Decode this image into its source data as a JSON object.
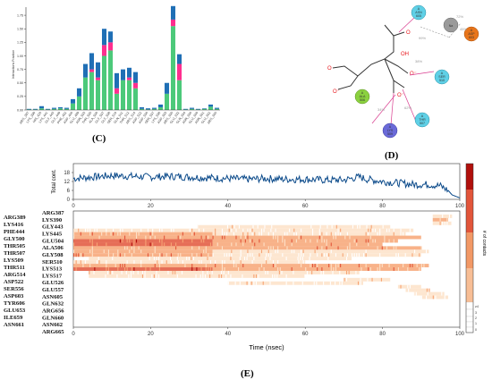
{
  "panels": {
    "c": {
      "label": "(C)",
      "ylabel": "Interactions Fraction",
      "yticks": [
        "0.00",
        "0.25",
        "0.50",
        "0.75",
        "1.00",
        "1.25",
        "1.50",
        "1.75"
      ],
      "xticks": [
        "ARG_387",
        "LYS_390",
        "HIS_426",
        "LYS_441",
        "GLY_443",
        "GLY_449",
        "PHE_452",
        "ASP_466",
        "GLU_489",
        "ASN_503",
        "THR_505",
        "ALA_506",
        "GLY_507",
        "GLY_508",
        "SER_510",
        "GLN_511",
        "THR_512",
        "ARG_514",
        "ASP_522",
        "ASP_556",
        "SER_557",
        "LYS_558",
        "ASP_603",
        "ARG_605",
        "GLU_632",
        "GLN_654",
        "ASN_656",
        "GLU_660",
        "ASN_661",
        "GLU_662",
        "ARG_665"
      ]
    },
    "d": {
      "label": "(D)",
      "residues": [
        {
          "chain": "A",
          "name": "ASN",
          "num": "605",
          "color": "#5fd0e6"
        },
        {
          "chain": "",
          "name": "Na",
          "num": "",
          "color": "#9a9a9a"
        },
        {
          "chain": "A",
          "name": "ASP",
          "num": "603",
          "color": "#e8751a"
        },
        {
          "chain": "A",
          "name": "SER",
          "num": "510",
          "color": "#5fd0e6"
        },
        {
          "chain": "A",
          "name": "THR",
          "num": "507",
          "color": "#5fd0e6"
        },
        {
          "chain": "A",
          "name": "LYS",
          "num": "509",
          "color": "#6a6ad8"
        },
        {
          "chain": "A",
          "name": "ALA",
          "num": "506",
          "color": "#8bd13f"
        }
      ],
      "percent_labels": [
        "72%",
        "45%",
        "99%",
        "38%",
        "62%",
        "34%"
      ]
    },
    "e": {
      "label": "(E)",
      "top_ylabel": "Total cont.",
      "top_yticks": [
        "0",
        "6",
        "12",
        "18"
      ],
      "xlabel": "Time (nsec)",
      "xticks": [
        "0",
        "20",
        "40",
        "60",
        "80",
        "100"
      ],
      "residues_left": [
        "ARG389",
        "LYS416",
        "PHE444",
        "GLY500",
        "THR505",
        "THR507",
        "LYS509",
        "THR511",
        "ARG514",
        "ASP522",
        "SER556",
        "ASP603",
        "TYR606",
        "GLU653",
        "ILE659",
        "ASN661"
      ],
      "residues_right": [
        "ARG387",
        "LYS390",
        "GLY443",
        "LYS445",
        "GLU504",
        "ALA506",
        "GLY508",
        "SER510",
        "LYS513",
        "LYS517",
        "GLU526",
        "GLU557",
        "ASN605",
        "GLN632",
        "ARG656",
        "GLN660",
        "ASN662",
        "ARG665"
      ],
      "colorbar_label": "# of contacts",
      "colorbar_ticks": [
        "0",
        "1",
        "2",
        "3",
        "≥4"
      ],
      "colors": [
        "#ffffff",
        "#fde2c8",
        "#f7a474",
        "#e2553a",
        "#b1100c"
      ]
    }
  },
  "chart_data": [
    {
      "type": "bar",
      "stacked": true,
      "title": "",
      "ylabel": "Interactions Fraction",
      "ylim": [
        0,
        1.9
      ],
      "categories": [
        "ARG_387",
        "LYS_390",
        "HIS_426",
        "LYS_441",
        "GLY_443",
        "GLY_449",
        "PHE_452",
        "ASP_466",
        "GLU_489",
        "ASN_503",
        "THR_505",
        "ALA_506",
        "GLY_507",
        "GLY_508",
        "SER_510",
        "GLN_511",
        "THR_512",
        "ARG_514",
        "ASP_522",
        "ASP_556",
        "SER_557",
        "LYS_558",
        "ASP_603",
        "ARG_605",
        "GLU_632",
        "GLN_654",
        "ASN_656",
        "GLU_660",
        "ASN_661",
        "GLU_662",
        "ARG_665"
      ],
      "series": [
        {
          "color": "#4cc97a",
          "values": [
            0.01,
            0.01,
            0.03,
            0.01,
            0.02,
            0.03,
            0.02,
            0.12,
            0.25,
            0.6,
            0.7,
            0.55,
            1.0,
            1.1,
            0.3,
            0.55,
            0.55,
            0.4,
            0.02,
            0.01,
            0.02,
            0.05,
            0.3,
            1.55,
            0.55,
            0.01,
            0.02,
            0.01,
            0.02,
            0.06,
            0.02
          ]
        },
        {
          "color": "#ff2e8f",
          "values": [
            0,
            0,
            0,
            0,
            0,
            0,
            0,
            0,
            0,
            0,
            0.05,
            0.05,
            0.2,
            0.15,
            0.1,
            0,
            0.05,
            0.1,
            0,
            0,
            0,
            0,
            0,
            0.12,
            0.3,
            0,
            0,
            0,
            0,
            0,
            0
          ]
        },
        {
          "color": "#1f6fb5",
          "values": [
            0.01,
            0.01,
            0.04,
            0.01,
            0.02,
            0.02,
            0.02,
            0.08,
            0.15,
            0.25,
            0.3,
            0.28,
            0.3,
            0.2,
            0.28,
            0.2,
            0.18,
            0.2,
            0.03,
            0.02,
            0.02,
            0.05,
            0.2,
            0.25,
            0.18,
            0.01,
            0.02,
            0.01,
            0.01,
            0.04,
            0.02
          ]
        }
      ]
    },
    {
      "type": "line",
      "title": "",
      "ylabel": "Total cont.",
      "xlabel": "Time (nsec)",
      "xlim": [
        0,
        100
      ],
      "ylim": [
        0,
        24
      ],
      "series": [
        {
          "color": "#0b4a8a",
          "points": [
            [
              0,
              14
            ],
            [
              5,
              15
            ],
            [
              10,
              16
            ],
            [
              15,
              15.5
            ],
            [
              20,
              15
            ],
            [
              25,
              15.5
            ],
            [
              30,
              15
            ],
            [
              35,
              14.5
            ],
            [
              40,
              14
            ],
            [
              45,
              13.5
            ],
            [
              50,
              14
            ],
            [
              55,
              13.5
            ],
            [
              60,
              13.5
            ],
            [
              65,
              13
            ],
            [
              70,
              13
            ],
            [
              74,
              15
            ],
            [
              76,
              13.5
            ],
            [
              80,
              12
            ],
            [
              84,
              11
            ],
            [
              88,
              10
            ],
            [
              92,
              10
            ],
            [
              95,
              9
            ],
            [
              97,
              6
            ],
            [
              98,
              3
            ],
            [
              100,
              1
            ]
          ]
        }
      ]
    },
    {
      "type": "heatmap",
      "title": "",
      "xlabel": "Time (nsec)",
      "xlim": [
        0,
        100
      ],
      "rows_top_to_bottom": [
        "ARG389/ARG387",
        "LYS390",
        "LYS416",
        "GLY443",
        "PHE444",
        "LYS445",
        "GLY500",
        "GLU504",
        "THR505",
        "ALA506",
        "THR507",
        "GLY508",
        "LYS509",
        "SER510",
        "THR511",
        "LYS513",
        "ARG514",
        "LYS517",
        "ASP522",
        "GLU526",
        "SER556",
        "GLU557",
        "ASP603",
        "ASN605",
        "TYR606",
        "GLN632",
        "GLU653",
        "ARG656",
        "ILE659",
        "GLN660",
        "ASN661",
        "ASN662",
        "ARG665"
      ],
      "segments": [
        {
          "row": 1,
          "start": 93,
          "end": 98,
          "level": 1
        },
        {
          "row": 2,
          "start": 93,
          "end": 97,
          "level": 2
        },
        {
          "row": 3,
          "start": 93,
          "end": 98,
          "level": 1
        },
        {
          "row": 4,
          "start": 32,
          "end": 82,
          "level": 1
        },
        {
          "row": 5,
          "start": 0,
          "end": 88,
          "level": 1
        },
        {
          "row": 6,
          "start": 0,
          "end": 36,
          "level": 2
        },
        {
          "row": 6,
          "start": 36,
          "end": 86,
          "level": 1
        },
        {
          "row": 7,
          "start": 0,
          "end": 90,
          "level": 2
        },
        {
          "row": 8,
          "start": 0,
          "end": 36,
          "level": 3
        },
        {
          "row": 8,
          "start": 36,
          "end": 84,
          "level": 2
        },
        {
          "row": 9,
          "start": 0,
          "end": 36,
          "level": 3
        },
        {
          "row": 9,
          "start": 36,
          "end": 80,
          "level": 2
        },
        {
          "row": 10,
          "start": 0,
          "end": 90,
          "level": 2
        },
        {
          "row": 11,
          "start": 0,
          "end": 36,
          "level": 2
        },
        {
          "row": 11,
          "start": 36,
          "end": 92,
          "level": 1
        },
        {
          "row": 12,
          "start": 0,
          "end": 36,
          "level": 2
        },
        {
          "row": 12,
          "start": 36,
          "end": 90,
          "level": 1
        },
        {
          "row": 13,
          "start": 4,
          "end": 72,
          "level": 1
        },
        {
          "row": 14,
          "start": 0,
          "end": 60,
          "level": 1
        },
        {
          "row": 15,
          "start": 0,
          "end": 92,
          "level": 2
        },
        {
          "row": 16,
          "start": 0,
          "end": 36,
          "level": 3
        },
        {
          "row": 16,
          "start": 36,
          "end": 90,
          "level": 2
        },
        {
          "row": 17,
          "start": 4,
          "end": 74,
          "level": 1
        },
        {
          "row": 18,
          "start": 4,
          "end": 60,
          "level": 1
        },
        {
          "row": 19,
          "start": 70,
          "end": 82,
          "level": 1
        },
        {
          "row": 20,
          "start": 40,
          "end": 75,
          "level": 1
        },
        {
          "row": 21,
          "start": 84,
          "end": 90,
          "level": 1
        },
        {
          "row": 22,
          "start": 86,
          "end": 92,
          "level": 1
        },
        {
          "row": 23,
          "start": 88,
          "end": 96,
          "level": 1
        },
        {
          "row": 24,
          "start": 90,
          "end": 97,
          "level": 1
        }
      ]
    }
  ]
}
